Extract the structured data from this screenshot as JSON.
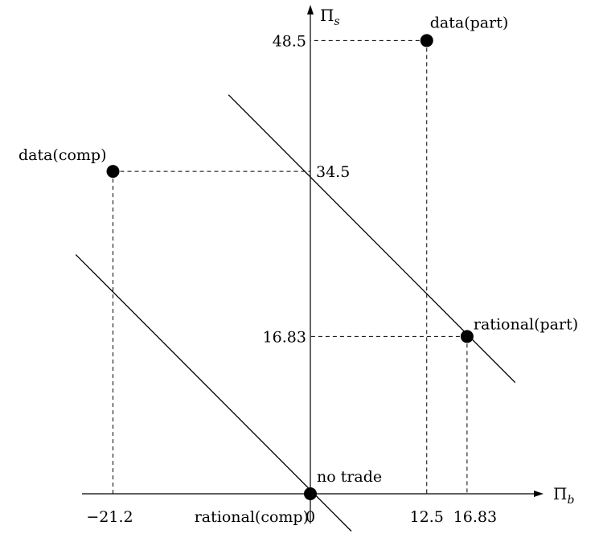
{
  "chart_data": {
    "type": "scatter",
    "title": "",
    "xlabel": "Π",
    "xlabel_sub": "b",
    "ylabel": "Π",
    "ylabel_sub": "s",
    "xlim": [
      -30,
      21
    ],
    "ylim": [
      -3.5,
      52
    ],
    "grid": false,
    "points": [
      {
        "label": "data(part)",
        "x": 12.5,
        "y": 48.5
      },
      {
        "label": "data(comp)",
        "x": -21.2,
        "y": 34.5
      },
      {
        "label": "rational(part)",
        "x": 16.83,
        "y": 16.83
      },
      {
        "label": "no trade",
        "x": 0,
        "y": 0
      }
    ],
    "annotations": [
      {
        "text": "rational(comp)",
        "x": 0,
        "y": 0
      }
    ],
    "x_ticks": [
      "−21.2",
      "0",
      "12.5",
      "16.83"
    ],
    "x_tick_values": [
      -21.2,
      0,
      12.5,
      16.83
    ],
    "y_ticks": [
      "48.5",
      "34.5",
      "16.83"
    ],
    "y_tick_values": [
      48.5,
      34.5,
      16.83
    ],
    "lines": [
      {
        "x": [
          -25.2,
          4.4
        ],
        "y": [
          25.6,
          -4.0
        ]
      },
      {
        "x": [
          -8.8,
          22.0
        ],
        "y": [
          42.7,
          11.9
        ]
      }
    ]
  }
}
